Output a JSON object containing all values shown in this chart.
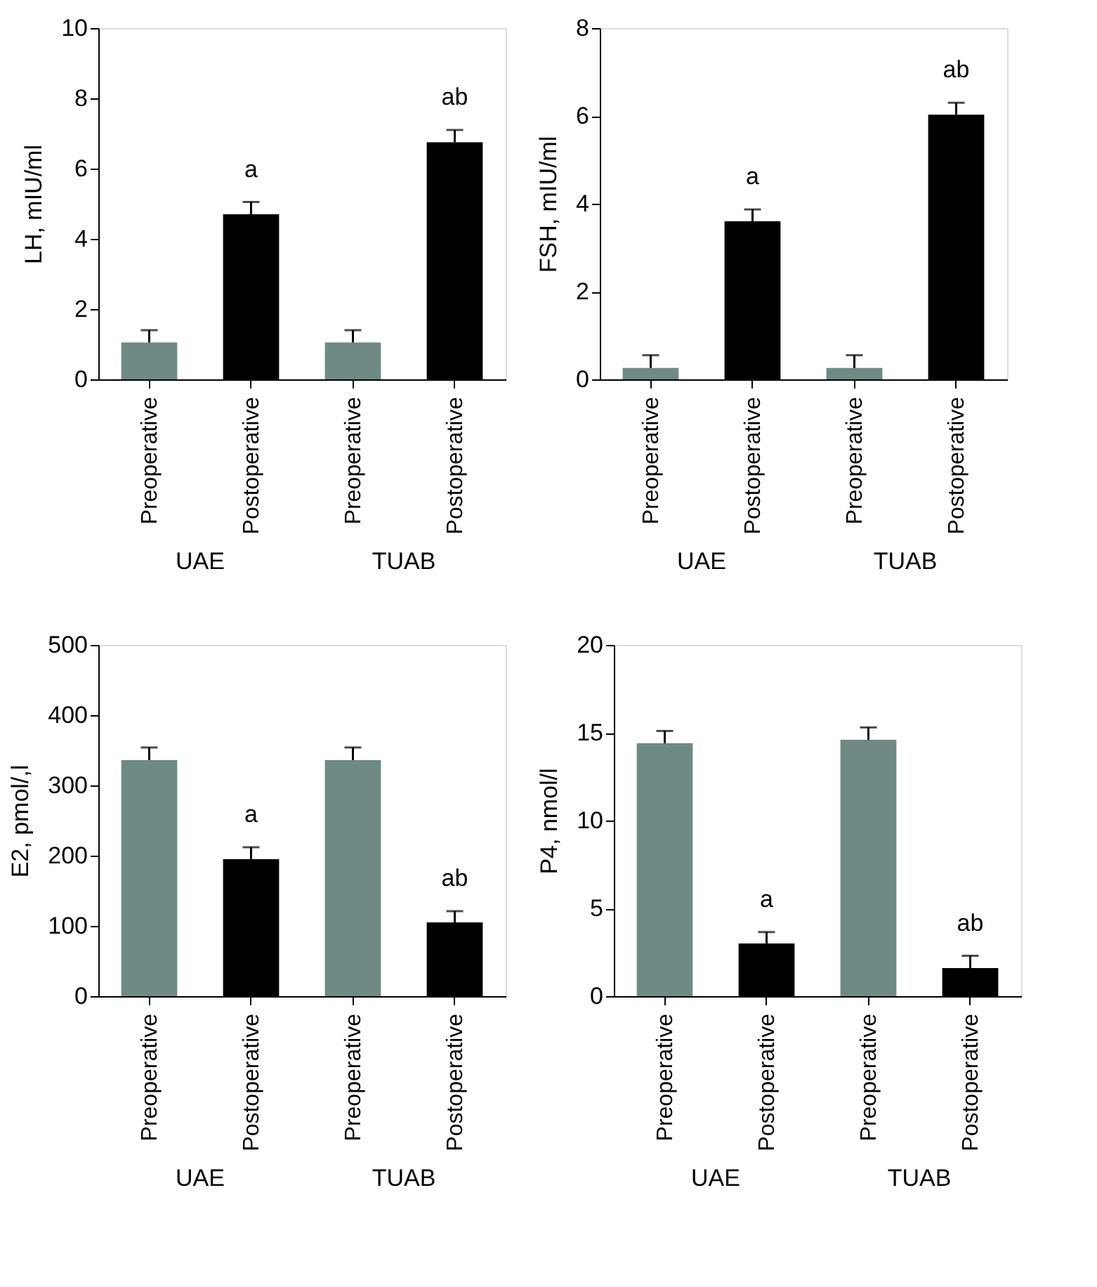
{
  "chart_data": [
    {
      "type": "bar",
      "ylabel": "LH, mIU/ml",
      "categories": [
        "Preoperative",
        "Postoperative",
        "Preoperative",
        "Postoperative"
      ],
      "values": [
        1.05,
        4.7,
        1.05,
        6.75
      ],
      "errors": [
        0.35,
        0.35,
        0.35,
        0.35
      ],
      "colors": [
        "#6f8a84",
        "#000000",
        "#6f8a84",
        "#000000"
      ],
      "value_labels": [
        null,
        "a",
        null,
        "ab"
      ],
      "annotations": [
        "UAE",
        "TUAB"
      ],
      "ylim": [
        0,
        10
      ],
      "yticks": [
        0,
        2,
        4,
        6,
        8,
        10
      ]
    },
    {
      "type": "bar",
      "ylabel": "FSH, mIU/ml",
      "categories": [
        "Preoperative",
        "Postoperative",
        "Preoperative",
        "Postoperative"
      ],
      "values": [
        0.26,
        3.6,
        0.26,
        6.03
      ],
      "errors": [
        0.29,
        0.27,
        0.29,
        0.27
      ],
      "colors": [
        "#6f8a84",
        "#000000",
        "#6f8a84",
        "#000000"
      ],
      "value_labels": [
        null,
        "a",
        null,
        "ab"
      ],
      "annotations": [
        "UAE",
        "TUAB"
      ],
      "ylim": [
        0,
        8
      ],
      "yticks": [
        0,
        2,
        4,
        6,
        8
      ]
    },
    {
      "type": "bar",
      "ylabel": "E2, pmol/,l",
      "categories": [
        "Preoperative",
        "Postoperative",
        "Preoperative",
        "Postoperative"
      ],
      "values": [
        336,
        195,
        336,
        105
      ],
      "errors": [
        18,
        17,
        18,
        16
      ],
      "colors": [
        "#6f8a84",
        "#000000",
        "#6f8a84",
        "#000000"
      ],
      "value_labels": [
        null,
        "a",
        null,
        "ab"
      ],
      "annotations": [
        "UAE",
        "TUAB"
      ],
      "ylim": [
        0,
        500
      ],
      "yticks": [
        0,
        100,
        200,
        300,
        400,
        500
      ]
    },
    {
      "type": "bar",
      "ylabel": "P4, nmol/l",
      "categories": [
        "Preoperative",
        "Postoperative",
        "Preoperative",
        "Postoperative"
      ],
      "values": [
        14.4,
        3.0,
        14.6,
        1.6
      ],
      "errors": [
        0.7,
        0.65,
        0.7,
        0.7
      ],
      "colors": [
        "#6f8a84",
        "#000000",
        "#6f8a84",
        "#000000"
      ],
      "value_labels": [
        null,
        "a",
        null,
        "ab"
      ],
      "annotations": [
        "UAE",
        "TUAB"
      ],
      "ylim": [
        0,
        20
      ],
      "yticks": [
        0,
        5,
        10,
        15,
        20
      ]
    }
  ]
}
